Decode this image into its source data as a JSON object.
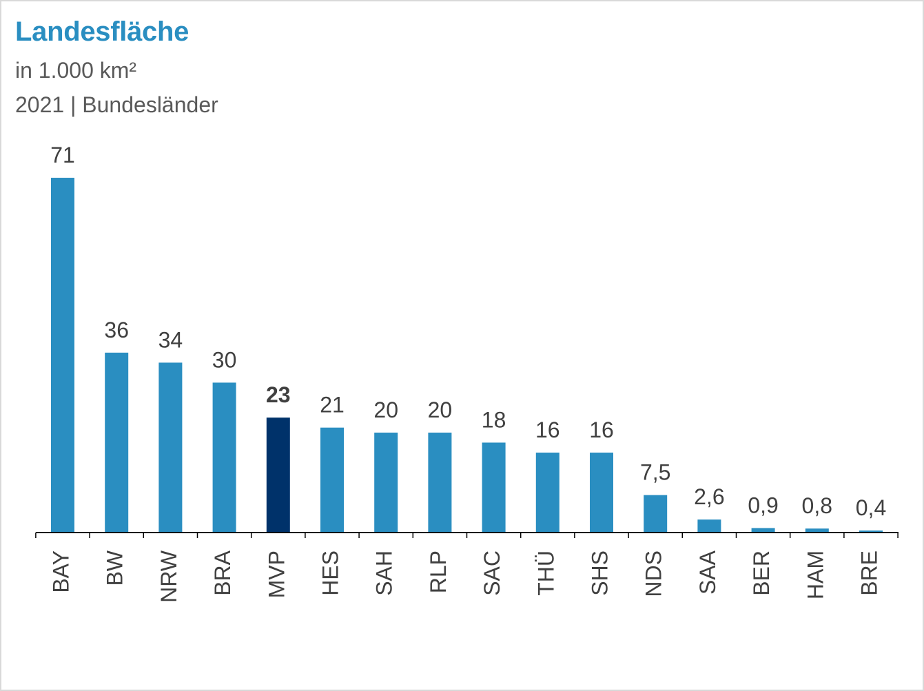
{
  "chart_data": {
    "type": "bar",
    "title": "Landesfläche",
    "subtitle_lines": [
      "in 1.000 km²",
      "2021 | Bundesländer"
    ],
    "xlabel": "",
    "ylabel": "",
    "categories": [
      "BAY",
      "BW",
      "NRW",
      "BRA",
      "MVP",
      "HES",
      "SAH",
      "RLP",
      "SAC",
      "THÜ",
      "SHS",
      "NDS",
      "SAA",
      "BER",
      "HAM",
      "BRE"
    ],
    "values": [
      71,
      36,
      34,
      30,
      23,
      21,
      20,
      20,
      18,
      16,
      16,
      7.5,
      2.6,
      0.9,
      0.8,
      0.4
    ],
    "value_labels": [
      "71",
      "36",
      "34",
      "30",
      "23",
      "21",
      "20",
      "20",
      "18",
      "16",
      "16",
      "7,5",
      "2,6",
      "0,9",
      "0,8",
      "0,4"
    ],
    "highlight_index": 4,
    "ylim": [
      0,
      71
    ],
    "grid": false,
    "legend": "none",
    "colors": {
      "bar": "#2a8ec1",
      "highlight": "#00326a",
      "title": "#2a8ec1",
      "axis": "#000000"
    }
  }
}
